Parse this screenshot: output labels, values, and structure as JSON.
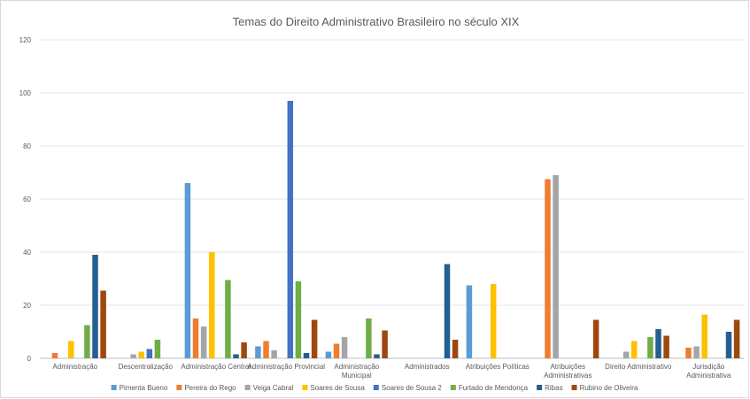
{
  "chart_data": {
    "type": "bar",
    "title": "Temas do Direito Administrativo Brasileiro no século XIX",
    "xlabel": "",
    "ylabel": "",
    "ylim": [
      0,
      120
    ],
    "yticks": [
      0,
      20,
      40,
      60,
      80,
      100,
      120
    ],
    "grid": true,
    "legend_position": "bottom",
    "categories": [
      "Administração",
      "Descentralização",
      "Administração Central",
      "Administração Provincial",
      "Administração Municipal",
      "Administrados",
      "Atribuições Políticas",
      "Atribuições Administrativas",
      "Direito Administrativo",
      "Jurisdição Administrativa"
    ],
    "category_lines": [
      [
        "Administração"
      ],
      [
        "Descentralização"
      ],
      [
        "Administração Central"
      ],
      [
        "Administração Provincial"
      ],
      [
        "Administração",
        "Municipal"
      ],
      [
        "Administrados"
      ],
      [
        "Atribuições Políticas"
      ],
      [
        "Atribuições",
        "Administrativas"
      ],
      [
        "Direito Administrativo"
      ],
      [
        "Jurisdição",
        "Administrativa"
      ]
    ],
    "series": [
      {
        "name": "Pimenta Bueno",
        "color": "#5b9bd5",
        "values": [
          0,
          0,
          66,
          4.5,
          2.5,
          0,
          27.5,
          0,
          0,
          0
        ]
      },
      {
        "name": "Pereira do Rego",
        "color": "#ed7d31",
        "values": [
          2,
          0,
          15,
          6.5,
          5.5,
          0,
          0,
          67.5,
          0,
          4
        ]
      },
      {
        "name": "Veiga Cabral",
        "color": "#a5a5a5",
        "values": [
          0,
          1.5,
          12,
          3,
          8,
          0,
          0,
          69,
          2.5,
          4.5
        ]
      },
      {
        "name": "Soares de Sousa",
        "color": "#ffc000",
        "values": [
          6.5,
          2.5,
          40,
          0,
          0,
          0,
          28,
          0,
          6.5,
          16.5
        ]
      },
      {
        "name": "Soares de Sousa 2",
        "color": "#4472c4",
        "values": [
          0,
          3.5,
          0,
          97,
          0,
          0,
          0,
          0,
          0,
          0
        ]
      },
      {
        "name": "Furtado de Mendonça",
        "color": "#70ad47",
        "values": [
          12.5,
          7,
          29.5,
          29,
          15,
          0,
          0,
          0,
          8,
          0
        ]
      },
      {
        "name": "Ribas",
        "color": "#255e91",
        "values": [
          39,
          0,
          1.5,
          2,
          1.5,
          35.5,
          0,
          0,
          11,
          10
        ]
      },
      {
        "name": "Rubino de Oliveira",
        "color": "#9e480e",
        "values": [
          25.5,
          0,
          6,
          14.5,
          10.5,
          7,
          0,
          14.5,
          8.5,
          14.5
        ]
      }
    ]
  }
}
